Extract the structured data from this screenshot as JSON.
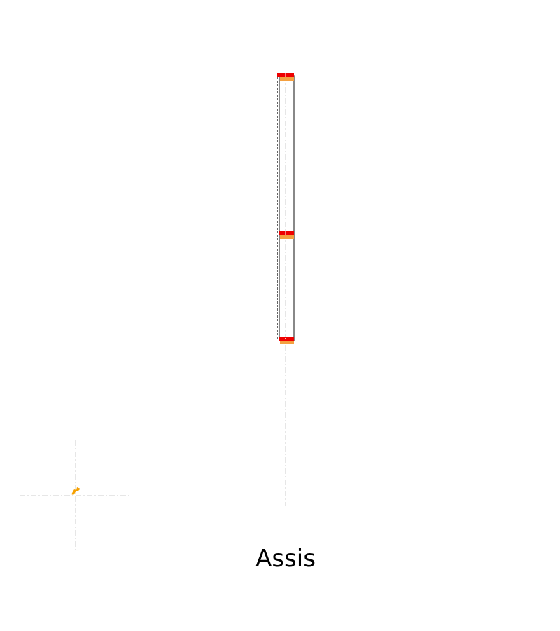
{
  "caption": "Assis",
  "colors": {
    "background": "#ffffff",
    "column_stroke": "#555555",
    "guide": "#cccccc",
    "marker_top": "#ee0000",
    "marker_bottom": "#f4a040",
    "origin_marker": "#f5a000",
    "caption": "#000000"
  },
  "elements": {
    "column": "vertical-column",
    "markers": [
      "joint-marker-top",
      "joint-marker-middle",
      "joint-marker-bottom"
    ],
    "origin": "origin-arrow-icon"
  }
}
